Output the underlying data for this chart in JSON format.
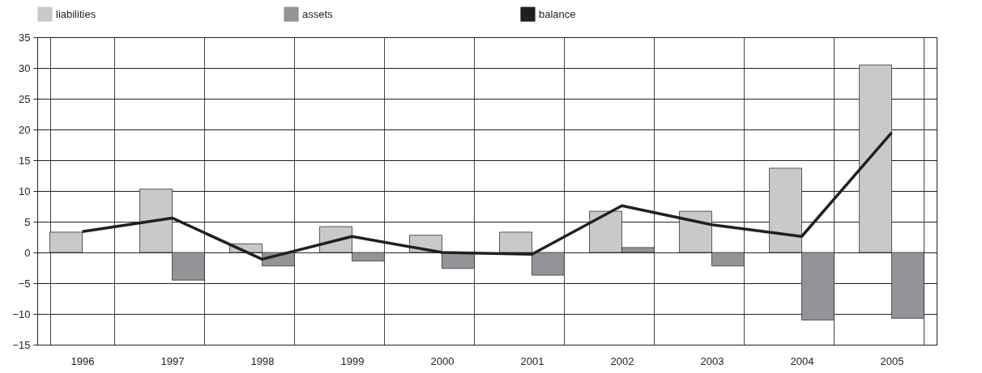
{
  "chart_data": {
    "type": "bar",
    "categories": [
      "1996",
      "1997",
      "1998",
      "1999",
      "2000",
      "2001",
      "2002",
      "2003",
      "2004",
      "2005"
    ],
    "series": [
      {
        "name": "liabilities",
        "color": "#c8c9cb",
        "values": [
          3.3,
          10.3,
          1.4,
          4.2,
          2.8,
          3.3,
          6.7,
          6.7,
          13.7,
          30.5
        ]
      },
      {
        "name": "assets",
        "color": "#939498",
        "values": [
          null,
          -4.5,
          -2.2,
          -1.4,
          -2.6,
          -3.7,
          0.8,
          -2.2,
          -11.0,
          -10.7
        ]
      },
      {
        "name": "balance",
        "type": "line",
        "color": "#231f20",
        "values": [
          3.4,
          5.6,
          -1.1,
          2.6,
          0.0,
          -0.3,
          7.6,
          4.5,
          2.6,
          19.5
        ]
      }
    ],
    "ylim": [
      -15,
      35
    ],
    "yticks": [
      -15,
      -10,
      -5,
      0,
      5,
      10,
      15,
      20,
      25,
      30,
      35
    ],
    "grid": true,
    "legend": "top"
  }
}
